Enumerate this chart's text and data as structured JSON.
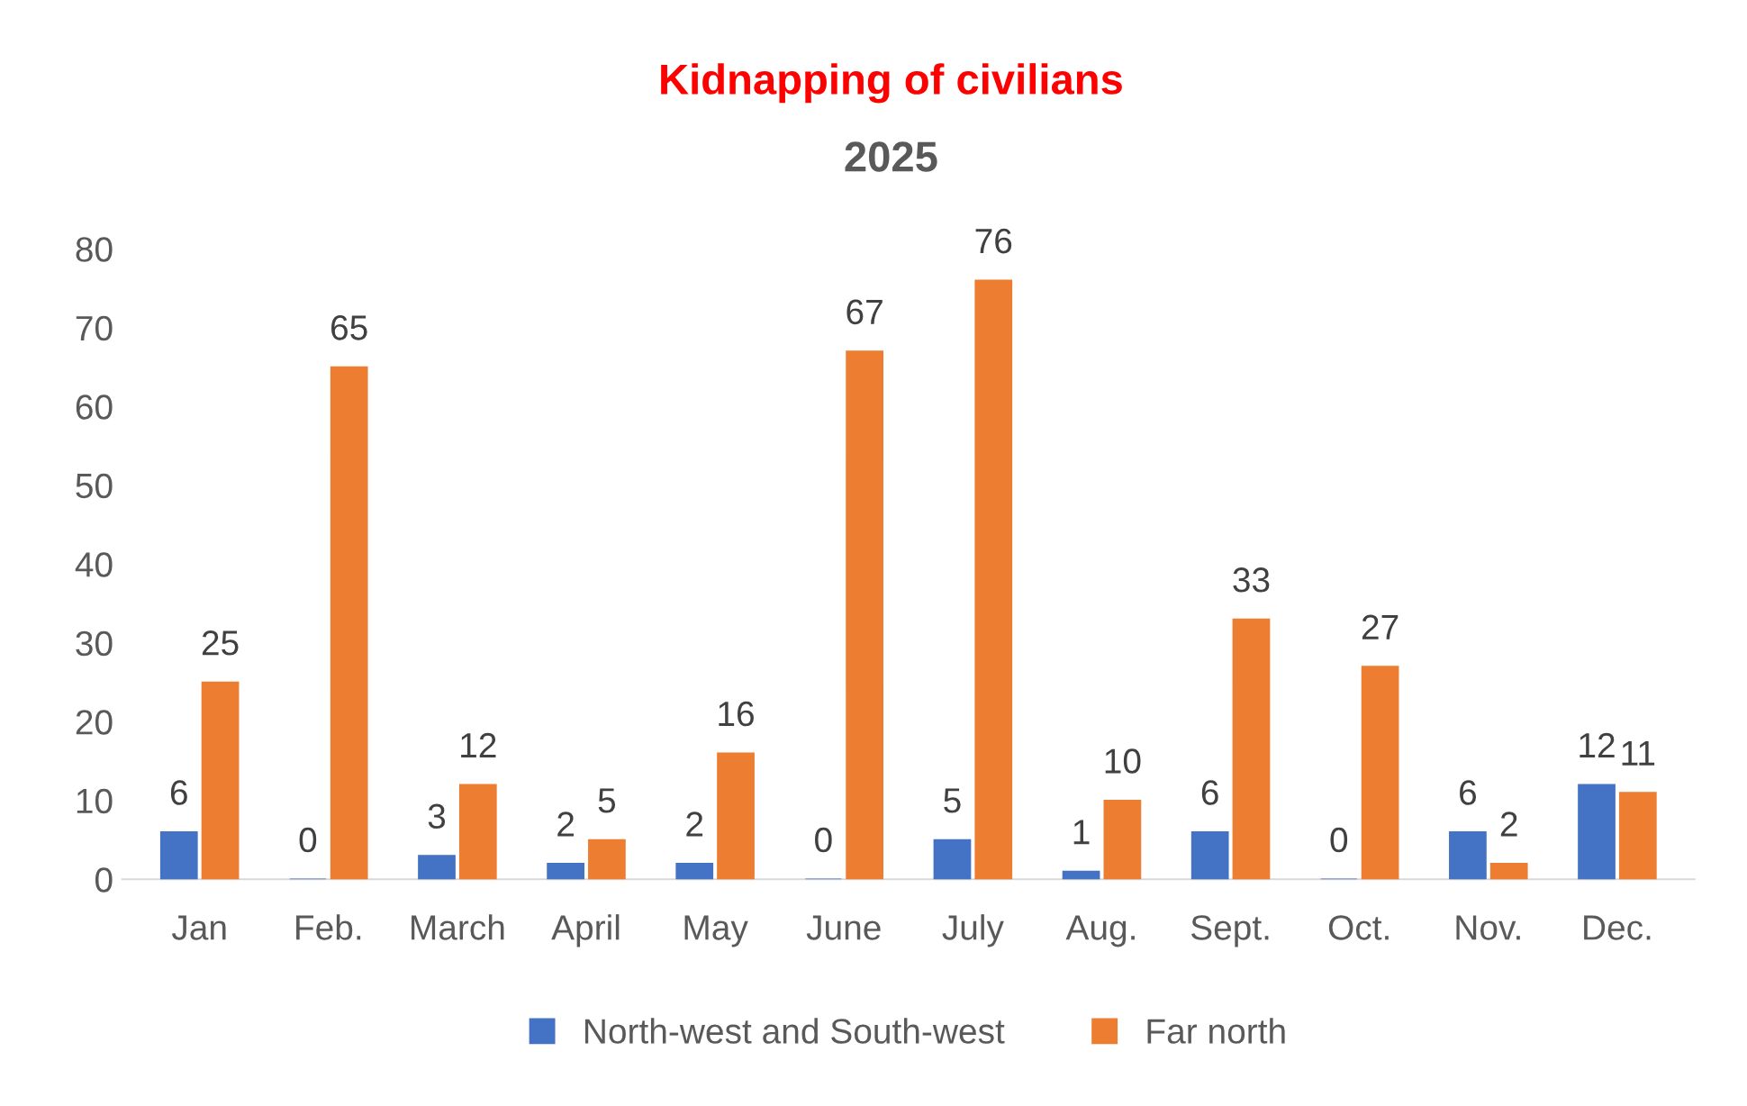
{
  "chart_data": {
    "type": "bar",
    "title": "Kidnapping of civilians",
    "subtitle": "2025",
    "categories": [
      "Jan",
      "Feb.",
      "March",
      "April",
      "May",
      "June",
      "July",
      "Aug.",
      "Sept.",
      "Oct.",
      "Nov.",
      "Dec."
    ],
    "series": [
      {
        "name": "North-west and South-west",
        "color": "#4472c4",
        "values": [
          6,
          0,
          3,
          2,
          2,
          0,
          5,
          1,
          6,
          0,
          6,
          12
        ]
      },
      {
        "name": "Far north",
        "color": "#ed7d31",
        "values": [
          25,
          65,
          12,
          5,
          16,
          67,
          76,
          10,
          33,
          27,
          2,
          11
        ]
      }
    ],
    "ylim": [
      0,
      80
    ],
    "yticks": [
      0,
      10,
      20,
      30,
      40,
      50,
      60,
      70,
      80
    ],
    "grid": false,
    "legend": "bottom",
    "data_labels": true
  }
}
